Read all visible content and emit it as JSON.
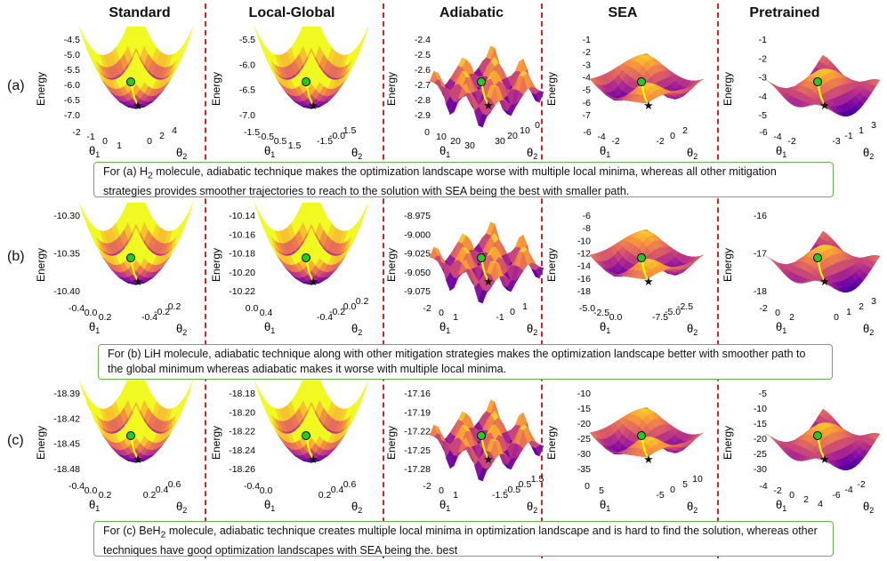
{
  "columns": [
    "Standard",
    "Local-Global",
    "Adiabatic",
    "SEA",
    "Pretrained"
  ],
  "rows": [
    {
      "label": "(a)",
      "panels": [
        {
          "ylabel": "Energy",
          "zticks": [
            "-4.5",
            "-5.0",
            "-5.5",
            "-6.0",
            "-6.5",
            "-7.0"
          ],
          "x1ticks": [
            "-2",
            "-1",
            "0",
            "1"
          ],
          "x2ticks": [
            "0",
            "2",
            "4"
          ]
        },
        {
          "ylabel": "Energy",
          "zticks": [
            "-5.5",
            "-6.0",
            "-6.5",
            "-7.0"
          ],
          "x1ticks": [
            "-1.5",
            "-0.5",
            "0.5",
            "1.5"
          ],
          "x2ticks": [
            "-1.5",
            "-0.0",
            "1.5"
          ]
        },
        {
          "ylabel": "Energy",
          "zticks": [
            "-2.4",
            "-2.5",
            "-2.6",
            "-2.7",
            "-2.8",
            "-2.9"
          ],
          "x1ticks": [
            "0",
            "10",
            "20",
            "30"
          ],
          "x2ticks": [
            "30",
            "20",
            "10",
            "0"
          ]
        },
        {
          "ylabel": "Energy",
          "zticks": [
            "-1",
            "-2",
            "-3",
            "-4",
            "-5",
            "-6",
            "-7"
          ],
          "x1ticks": [
            "-6",
            "-4",
            "-2"
          ],
          "x2ticks": [
            "-2",
            "0",
            "2"
          ]
        },
        {
          "ylabel": "Energy",
          "zticks": [
            "-1",
            "-2",
            "-3",
            "-4",
            "-5"
          ],
          "x1ticks": [
            "-6",
            "-4",
            "-2"
          ],
          "x2ticks": [
            "-3",
            "-1",
            "1",
            "3"
          ]
        }
      ],
      "caption_prefix": "For (a) H",
      "caption_sub": "2",
      "caption_rest": " molecule, adiabatic technique makes the optimization landscape worse with multiple local minima, whereas all other mitigation strategies provides smoother trajectories to reach to the solution with SEA being the best with smaller path."
    },
    {
      "label": "(b)",
      "panels": [
        {
          "ylabel": "Energy",
          "zticks": [
            "-10.30",
            "-10.35",
            "-10.40"
          ],
          "x1ticks": [
            "-0.4",
            "0.0",
            "0.2"
          ],
          "x2ticks": [
            "-0.4",
            "-0.2",
            "0.2"
          ]
        },
        {
          "ylabel": "Energy",
          "zticks": [
            "-10.14",
            "-10.16",
            "-10.18",
            "-10.20",
            "-10.22"
          ],
          "x1ticks": [
            "0.0",
            "0.4"
          ],
          "x2ticks": [
            "-0.4",
            "-0.2",
            "0.0",
            "0.2"
          ]
        },
        {
          "ylabel": "Energy",
          "zticks": [
            "-8.975",
            "-9.000",
            "-9.025",
            "-9.050",
            "-9.075"
          ],
          "x1ticks": [
            "-2",
            "0",
            "1"
          ],
          "x2ticks": [
            "-1",
            "0",
            "1"
          ]
        },
        {
          "ylabel": "Energy",
          "zticks": [
            "-6",
            "-8",
            "-10",
            "-12",
            "-14",
            "-16",
            "-18"
          ],
          "x1ticks": [
            "-5.0",
            "-2.5",
            "0.0"
          ],
          "x2ticks": [
            "-7.5",
            "-5.0",
            "-2.5"
          ]
        },
        {
          "ylabel": "Energy",
          "zticks": [
            "-16",
            "-17",
            "-18"
          ],
          "x1ticks": [
            "-2",
            "0",
            "2"
          ],
          "x2ticks": [
            "0",
            "1",
            "2",
            "3"
          ]
        }
      ],
      "caption_prefix": "For (b) LiH molecule, adiabatic technique along with other mitigation strategies makes the optimization landscape better with smoother path to the global minimum whereas adiabatic makes it worse with multiple local minima.",
      "caption_sub": "",
      "caption_rest": ""
    },
    {
      "label": "(c)",
      "panels": [
        {
          "ylabel": "Energy",
          "zticks": [
            "-18.39",
            "-18.42",
            "-18.45",
            "-18.48"
          ],
          "x1ticks": [
            "-0.4",
            "0.0",
            "0.2"
          ],
          "x2ticks": [
            "0.2",
            "0.4",
            "0.6"
          ]
        },
        {
          "ylabel": "Energy",
          "zticks": [
            "-18.18",
            "-18.20",
            "-18.22",
            "-18.24",
            "-18.26"
          ],
          "x1ticks": [
            "-0.4",
            "0.0"
          ],
          "x2ticks": [
            "0.2",
            "0.4",
            "0.6"
          ]
        },
        {
          "ylabel": "Energy",
          "zticks": [
            "-17.16",
            "-17.19",
            "-17.22",
            "-17.25",
            "-17.28"
          ],
          "x1ticks": [
            "-2",
            "0",
            "1"
          ],
          "x2ticks": [
            "-1.5",
            "-0.5",
            "0.5",
            "1.5"
          ]
        },
        {
          "ylabel": "Energy",
          "zticks": [
            "-10",
            "-15",
            "-20",
            "-25",
            "-30",
            "-35"
          ],
          "x1ticks": [
            "0",
            "5"
          ],
          "x2ticks": [
            "-5",
            "0",
            "5",
            "10"
          ]
        },
        {
          "ylabel": "Energy",
          "zticks": [
            "-5",
            "-10",
            "-15",
            "-20",
            "-25",
            "-30"
          ],
          "x1ticks": [
            "-4",
            "-2",
            "0",
            "2",
            "4"
          ],
          "x2ticks": [
            "-6",
            "-4",
            "-2"
          ]
        }
      ],
      "caption_prefix": "For (c) BeH",
      "caption_sub": "2",
      "caption_rest": " molecule, adiabatic technique creates multiple local minima in optimization landscape and is hard to find the solution, whereas  other techniques have good optimization landscapes with SEA being the. best"
    }
  ],
  "axis_labels": {
    "theta1": "θ",
    "theta1_sub": "1",
    "theta2": "θ",
    "theta2_sub": "2"
  },
  "colors": {
    "accent_red": "#e02020",
    "caption_border": "#6ab04c",
    "path": "#ffff00",
    "start": "#22cc22",
    "end": "#111111"
  }
}
